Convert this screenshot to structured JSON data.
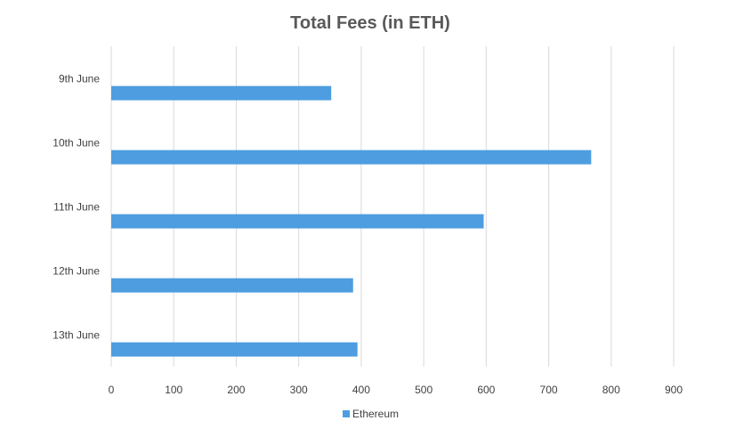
{
  "chart_data": {
    "type": "bar",
    "orientation": "horizontal",
    "title": "Total Fees (in ETH)",
    "categories": [
      "9th June",
      "10th June",
      "11th June",
      "12th June",
      "13th June"
    ],
    "series": [
      {
        "name": "Ethereum",
        "color": "#4e9de0",
        "values": [
          352,
          768,
          596,
          387,
          394
        ]
      }
    ],
    "xlim": [
      0,
      900
    ],
    "xticks": [
      0,
      100,
      200,
      300,
      400,
      500,
      600,
      700,
      800,
      900
    ],
    "grid": "vertical",
    "legend_position": "bottom",
    "xlabel": "",
    "ylabel": ""
  }
}
